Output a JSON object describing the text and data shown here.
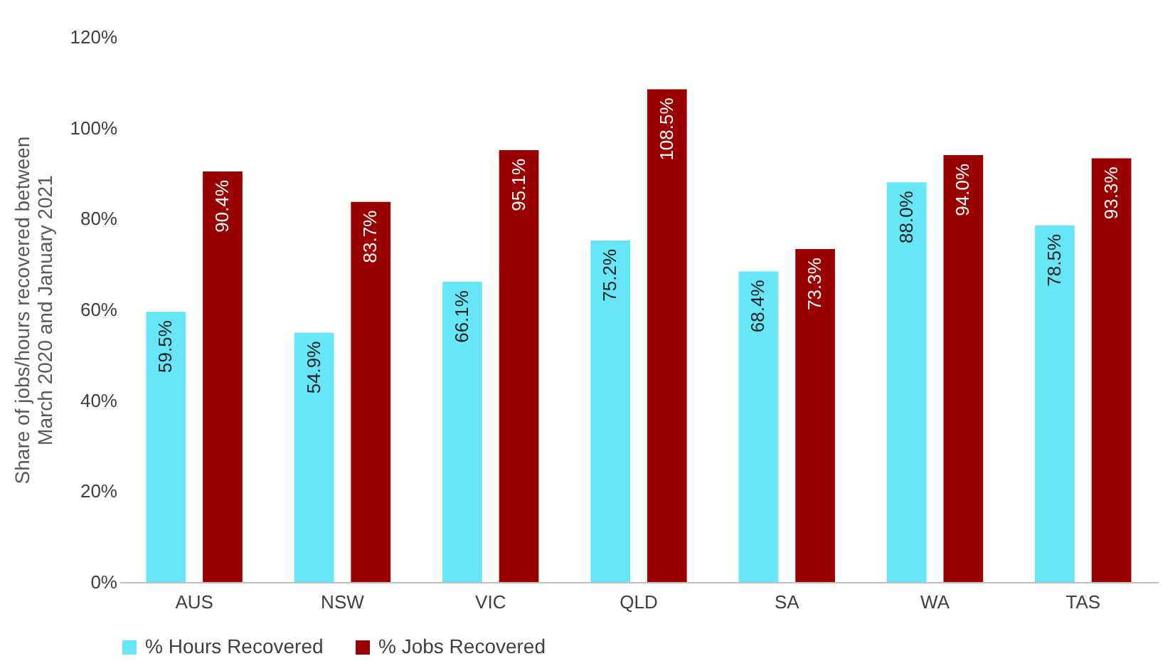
{
  "chart_data": {
    "type": "bar",
    "ylabel": "Share of jobs/hours recovered between\nMarch 2020 and January 2021",
    "categories": [
      "AUS",
      "NSW",
      "VIC",
      "QLD",
      "SA",
      "WA",
      "TAS"
    ],
    "series": [
      {
        "name": "% Hours Recovered",
        "color": "#66e6f7",
        "values": [
          59.5,
          54.9,
          66.1,
          75.2,
          68.4,
          88.0,
          78.5
        ],
        "value_labels": [
          "59.5%",
          "54.9%",
          "66.1%",
          "75.2%",
          "68.4%",
          "88.0%",
          "78.5%"
        ]
      },
      {
        "name": "% Jobs Recovered",
        "color": "#990000",
        "values": [
          90.4,
          83.7,
          95.1,
          108.5,
          73.3,
          94.0,
          93.3
        ],
        "value_labels": [
          "90.4%",
          "83.7%",
          "95.1%",
          "108.5%",
          "73.3%",
          "94.0%",
          "93.3%"
        ]
      }
    ],
    "ylim": [
      0,
      120
    ],
    "yticks": [
      {
        "value": 0,
        "label": "0%"
      },
      {
        "value": 20,
        "label": "20%"
      },
      {
        "value": 40,
        "label": "40%"
      },
      {
        "value": 60,
        "label": "60%"
      },
      {
        "value": 80,
        "label": "80%"
      },
      {
        "value": 100,
        "label": "100%"
      },
      {
        "value": 120,
        "label": "120%"
      }
    ],
    "grid": false,
    "legend": "bottom"
  }
}
